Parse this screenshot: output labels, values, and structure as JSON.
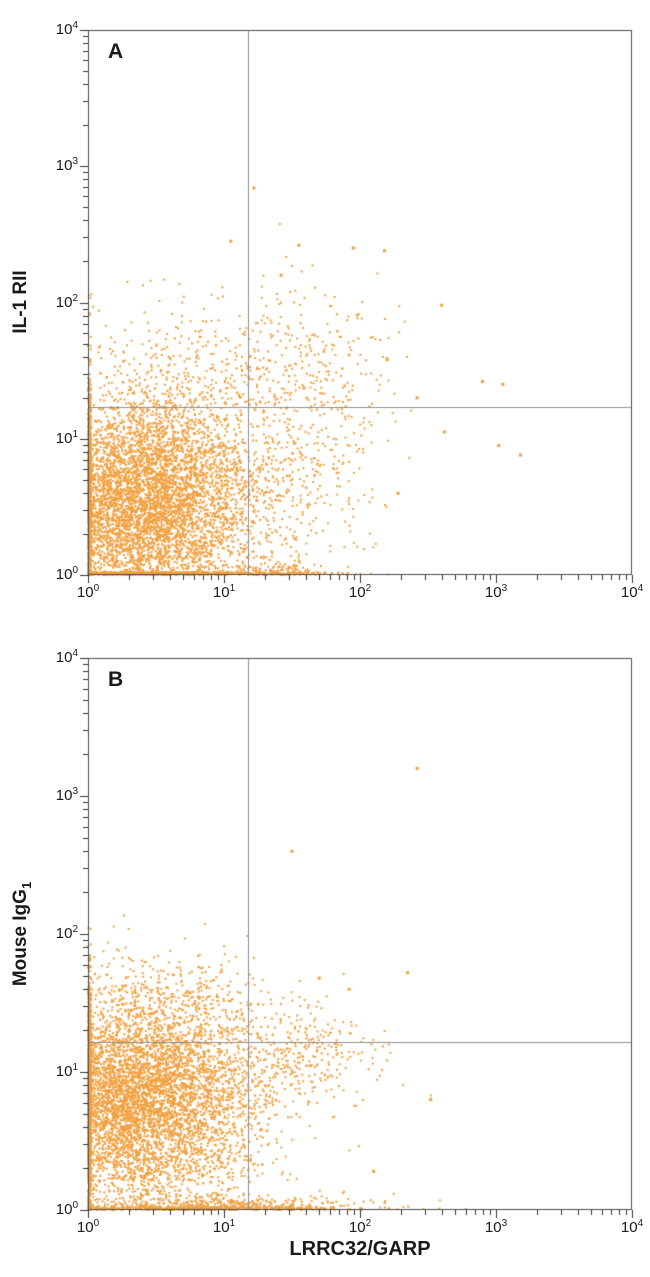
{
  "figure": {
    "background": "#ffffff",
    "shared_xlabel": "LRRC32/GARP"
  },
  "chart_data": [
    {
      "type": "scatter",
      "panel_label": "A",
      "ylabel": "IL-1 RII",
      "ylabel_sub": "",
      "xlabel": "LRRC32/GARP",
      "xlim": [
        1,
        10000
      ],
      "ylim": [
        1,
        10000
      ],
      "x_axis": {
        "scale": "log",
        "min_exp": 0,
        "max_exp": 4,
        "tick_labels": [
          "10^0",
          "10^1",
          "10^2",
          "10^3",
          "10^4"
        ]
      },
      "y_axis": {
        "scale": "log",
        "min_exp": 0,
        "max_exp": 4,
        "tick_labels": [
          "10^0",
          "10^1",
          "10^2",
          "10^3",
          "10^4"
        ]
      },
      "grid": false,
      "dot_color": "#F1A140",
      "frame_color": "#4d4d4d",
      "gate_color": "#8f8f8f",
      "tick_color": "#333333",
      "quadrant_gate": {
        "x": 15,
        "y": 17
      },
      "clusters": [
        {
          "n": 6500,
          "cx": 0.42,
          "cy": 0.52,
          "sx": 0.42,
          "sy": 0.4,
          "seed": 11
        },
        {
          "n": 420,
          "cx": 1.55,
          "cy": 0.85,
          "sx": 0.28,
          "sy": 0.52,
          "seed": 12
        },
        {
          "n": 300,
          "cx": 0.8,
          "cy": 1.5,
          "sx": 0.5,
          "sy": 0.3,
          "seed": 13
        },
        {
          "n": 130,
          "cx": 1.72,
          "cy": 1.58,
          "sx": 0.26,
          "sy": 0.3,
          "seed": 14
        },
        {
          "n": 160,
          "cx": 1.35,
          "cy": 0.01,
          "sx": 0.22,
          "sy": 0.04,
          "seed": 15
        }
      ],
      "outlier_points_log10": [
        [
          1.22,
          2.84
        ],
        [
          1.95,
          2.4
        ],
        [
          2.18,
          2.38
        ],
        [
          1.55,
          2.42
        ],
        [
          1.42,
          2.2
        ],
        [
          2.9,
          1.42
        ],
        [
          3.02,
          0.95
        ],
        [
          3.18,
          0.88
        ],
        [
          2.62,
          1.05
        ],
        [
          2.42,
          1.3
        ],
        [
          3.05,
          1.4
        ],
        [
          2.28,
          0.6
        ],
        [
          2.6,
          1.98
        ],
        [
          2.2,
          1.58
        ],
        [
          1.05,
          2.45
        ]
      ]
    },
    {
      "type": "scatter",
      "panel_label": "B",
      "ylabel": "Mouse IgG",
      "ylabel_sub": "1",
      "xlabel": "LRRC32/GARP",
      "xlim": [
        1,
        10000
      ],
      "ylim": [
        1,
        10000
      ],
      "x_axis": {
        "scale": "log",
        "min_exp": 0,
        "max_exp": 4,
        "tick_labels": [
          "10^0",
          "10^1",
          "10^2",
          "10^3",
          "10^4"
        ]
      },
      "y_axis": {
        "scale": "log",
        "min_exp": 0,
        "max_exp": 4,
        "tick_labels": [
          "10^0",
          "10^1",
          "10^2",
          "10^3",
          "10^4"
        ]
      },
      "grid": false,
      "dot_color": "#F1A140",
      "frame_color": "#4d4d4d",
      "gate_color": "#8f8f8f",
      "tick_color": "#333333",
      "quadrant_gate": {
        "x": 15,
        "y": 16.5
      },
      "clusters": [
        {
          "n": 6500,
          "cx": 0.35,
          "cy": 0.8,
          "sx": 0.45,
          "sy": 0.38,
          "seed": 21
        },
        {
          "n": 700,
          "cx": 0.95,
          "cy": 0.01,
          "sx": 0.55,
          "sy": 0.05,
          "seed": 22
        },
        {
          "n": 320,
          "cx": 1.5,
          "cy": 1.12,
          "sx": 0.3,
          "sy": 0.18,
          "seed": 23
        },
        {
          "n": 160,
          "cx": 0.55,
          "cy": 1.58,
          "sx": 0.38,
          "sy": 0.1,
          "seed": 24
        }
      ],
      "outlier_points_log10": [
        [
          2.42,
          3.2
        ],
        [
          1.5,
          2.6
        ],
        [
          2.35,
          1.72
        ],
        [
          2.52,
          0.8
        ],
        [
          1.92,
          1.6
        ],
        [
          2.1,
          0.28
        ],
        [
          1.7,
          1.68
        ]
      ]
    }
  ]
}
